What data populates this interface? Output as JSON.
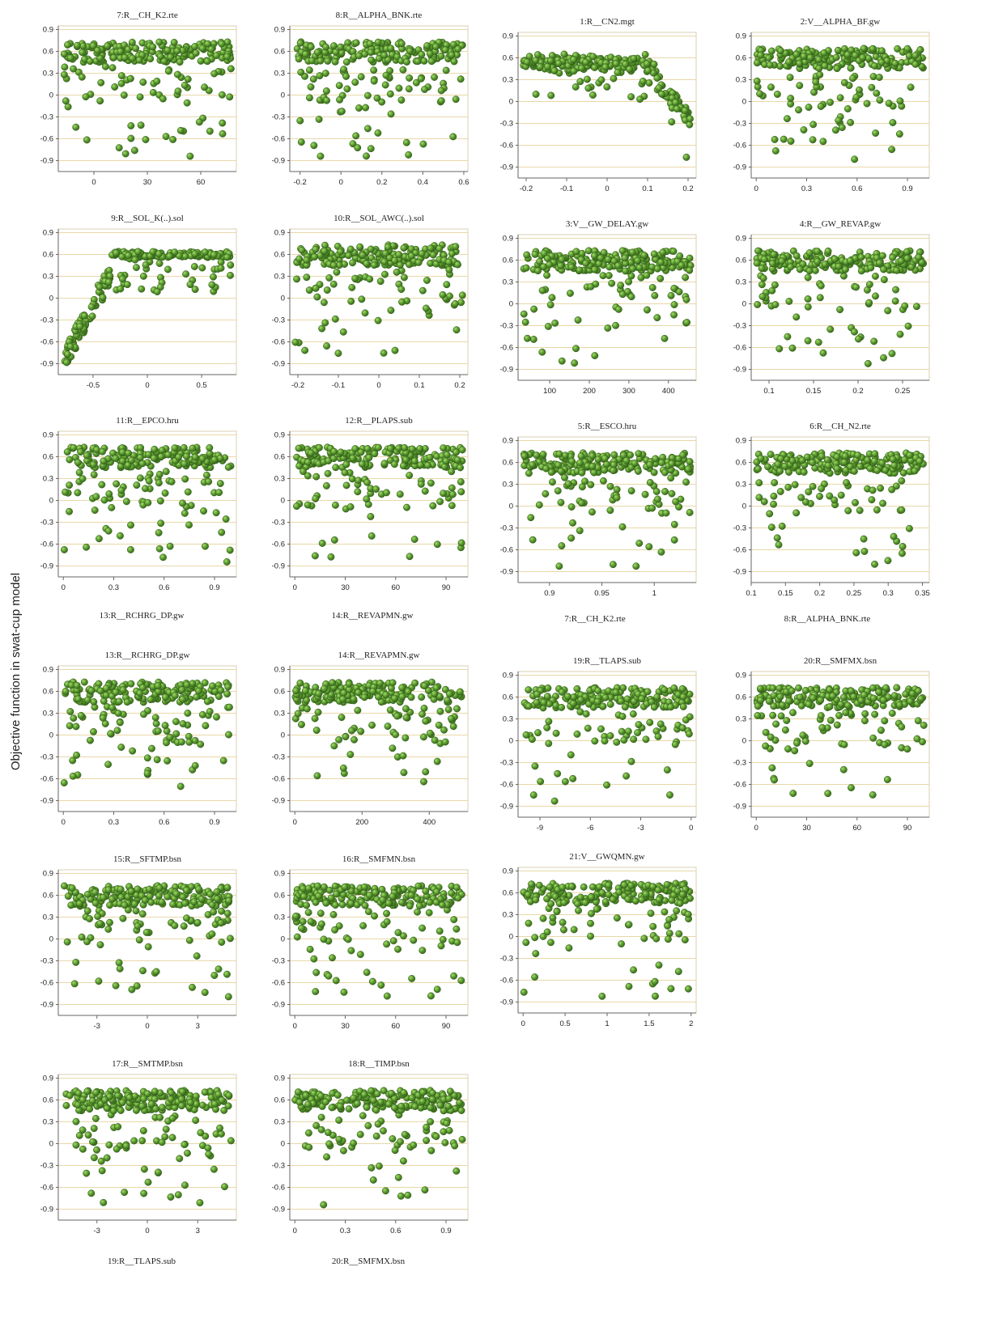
{
  "figure": {
    "ylabel": "Objective function in swat-cup model",
    "colors": {
      "point": "#4f8c2c",
      "point_light": "#8fcf55",
      "point_edge": "#2f5a17",
      "grid": "#e8d8a8",
      "axis": "#666666"
    },
    "y_ticks": [
      0.9,
      0.6,
      0.3,
      0,
      -0.3,
      -0.6,
      -0.9
    ],
    "y_tick_labels": [
      "0.9",
      "0.6",
      "0.3",
      "0",
      "-0.3",
      "-0.6",
      "-0.9"
    ],
    "y_range": [
      -1.05,
      0.95
    ]
  },
  "chart_data": [
    {
      "type": "scatter",
      "title": "7:R__CH_K2.rte",
      "xlim": [
        -20,
        80
      ],
      "x_ticks": [
        0,
        30,
        60
      ],
      "x_tick_labels": [
        "0",
        "30",
        "60"
      ],
      "pattern": "flat",
      "seed": 7
    },
    {
      "type": "scatter",
      "title": "8:R__ALPHA_BNK.rte",
      "xlim": [
        -0.25,
        0.62
      ],
      "x_ticks": [
        -0.2,
        0,
        0.2,
        0.4,
        0.6
      ],
      "x_tick_labels": [
        "-0.2",
        "0",
        "0.2",
        "0.4",
        "0.6"
      ],
      "pattern": "flat",
      "seed": 8
    },
    {
      "type": "scatter",
      "title": "1:R__CN2.mgt",
      "xlim": [
        -0.22,
        0.22
      ],
      "x_ticks": [
        -0.2,
        -0.1,
        0,
        0.1,
        0.2
      ],
      "x_tick_labels": [
        "-0.2",
        "-0.1",
        "0",
        "0.1",
        "0.2"
      ],
      "pattern": "cn2",
      "seed": 1
    },
    {
      "type": "scatter",
      "title": "2:V__ALPHA_BF.gw",
      "xlim": [
        -0.03,
        1.03
      ],
      "x_ticks": [
        0,
        0.3,
        0.6,
        0.9
      ],
      "x_tick_labels": [
        "0",
        "0.3",
        "0.6",
        "0.9"
      ],
      "pattern": "flat",
      "seed": 2
    },
    {
      "type": "scatter",
      "title": "9:R__SOL_K(..).sol",
      "xlim": [
        -0.82,
        0.82
      ],
      "x_ticks": [
        -0.5,
        0,
        0.5
      ],
      "x_tick_labels": [
        "-0.5",
        "0",
        "0.5"
      ],
      "pattern": "solk",
      "seed": 9
    },
    {
      "type": "scatter",
      "title": "10:R__SOL_AWC(..).sol",
      "xlim": [
        -0.22,
        0.22
      ],
      "x_ticks": [
        -0.2,
        -0.1,
        0,
        0.1,
        0.2
      ],
      "x_tick_labels": [
        "-0.2",
        "-0.1",
        "0",
        "0.1",
        "0.2"
      ],
      "pattern": "flat",
      "seed": 10
    },
    {
      "type": "scatter",
      "title": "3:V__GW_DELAY.gw",
      "xlim": [
        20,
        470
      ],
      "x_ticks": [
        100,
        200,
        300,
        400
      ],
      "x_tick_labels": [
        "100",
        "200",
        "300",
        "400"
      ],
      "pattern": "flat",
      "seed": 3
    },
    {
      "type": "scatter",
      "title": "4:R__GW_REVAP.gw",
      "xlim": [
        0.08,
        0.28
      ],
      "x_ticks": [
        0.1,
        0.15,
        0.2,
        0.25
      ],
      "x_tick_labels": [
        "0.1",
        "0.15",
        "0.2",
        "0.25"
      ],
      "pattern": "flat",
      "seed": 4
    },
    {
      "type": "scatter",
      "title": "11:R__EPCO.hru",
      "xlim": [
        -0.03,
        1.03
      ],
      "x_ticks": [
        0,
        0.3,
        0.6,
        0.9
      ],
      "x_tick_labels": [
        "0",
        "0.3",
        "0.6",
        "0.9"
      ],
      "pattern": "flat",
      "seed": 11
    },
    {
      "type": "scatter",
      "title": "12:R__PLAPS.sub",
      "xlim": [
        -3,
        103
      ],
      "x_ticks": [
        0,
        30,
        60,
        90
      ],
      "x_tick_labels": [
        "0",
        "30",
        "60",
        "90"
      ],
      "pattern": "flat",
      "seed": 12
    },
    {
      "type": "scatter",
      "title": "5:R__ESCO.hru",
      "xlim": [
        0.87,
        1.04
      ],
      "x_ticks": [
        0.9,
        0.95,
        1
      ],
      "x_tick_labels": [
        "0.9",
        "0.95",
        "1"
      ],
      "pattern": "flat",
      "seed": 5
    },
    {
      "type": "scatter",
      "title": "6:R__CH_N2.rte",
      "xlim": [
        0.1,
        0.36
      ],
      "x_ticks": [
        0.1,
        0.15,
        0.2,
        0.25,
        0.3,
        0.35
      ],
      "x_tick_labels": [
        "0.1",
        "0.15",
        "0.2",
        "0.25",
        "0.3",
        "0.35"
      ],
      "pattern": "flat",
      "seed": 6
    },
    {
      "type": "scatter",
      "title": "13:R__RCHRG_DP.gw",
      "xlim": [
        -0.03,
        1.03
      ],
      "x_ticks": [
        0,
        0.3,
        0.6,
        0.9
      ],
      "x_tick_labels": [
        "0",
        "0.3",
        "0.6",
        "0.9"
      ],
      "pattern": "flat",
      "seed": 13
    },
    {
      "type": "scatter",
      "title": "14:R__REVAPMN.gw",
      "xlim": [
        -15,
        515
      ],
      "x_ticks": [
        0,
        200,
        400
      ],
      "x_tick_labels": [
        "0",
        "200",
        "400"
      ],
      "pattern": "flat",
      "seed": 14
    },
    {
      "type": "scatter",
      "title": "19:R__TLAPS.sub",
      "xlim": [
        -10.3,
        0.3
      ],
      "x_ticks": [
        -9,
        -6,
        -3,
        0
      ],
      "x_tick_labels": [
        "-9",
        "-6",
        "-3",
        "0"
      ],
      "pattern": "flat",
      "seed": 19
    },
    {
      "type": "scatter",
      "title": "20:R__SMFMX.bsn",
      "xlim": [
        -3,
        103
      ],
      "x_ticks": [
        0,
        30,
        60,
        90
      ],
      "x_tick_labels": [
        "0",
        "30",
        "60",
        "90"
      ],
      "pattern": "flat",
      "seed": 20
    },
    {
      "type": "scatter",
      "title": "15:R__SFTMP.bsn",
      "xlim": [
        -5.3,
        5.3
      ],
      "x_ticks": [
        -3,
        0,
        3
      ],
      "x_tick_labels": [
        "-3",
        "0",
        "3"
      ],
      "pattern": "flat",
      "seed": 15
    },
    {
      "type": "scatter",
      "title": "16:R__SMFMN.bsn",
      "xlim": [
        -3,
        103
      ],
      "x_ticks": [
        0,
        30,
        60,
        90
      ],
      "x_tick_labels": [
        "0",
        "30",
        "60",
        "90"
      ],
      "pattern": "flat",
      "seed": 16
    },
    {
      "type": "scatter",
      "title": "21:V__GWQMN.gw",
      "xlim": [
        -0.06,
        2.06
      ],
      "x_ticks": [
        0,
        0.5,
        1,
        1.5,
        2
      ],
      "x_tick_labels": [
        "0",
        "0.5",
        "1",
        "1.5",
        "2"
      ],
      "pattern": "flat",
      "seed": 21
    },
    {
      "type": "scatter",
      "title": "17:R__SMTMP.bsn",
      "xlim": [
        -5.3,
        5.3
      ],
      "x_ticks": [
        -3,
        0,
        3
      ],
      "x_tick_labels": [
        "-3",
        "0",
        "3"
      ],
      "pattern": "flat",
      "seed": 17
    },
    {
      "type": "scatter",
      "title": "18:R__TIMP.bsn",
      "xlim": [
        -0.03,
        1.03
      ],
      "x_ticks": [
        0,
        0.3,
        0.6,
        0.9
      ],
      "x_tick_labels": [
        "0",
        "0.3",
        "0.6",
        "0.9"
      ],
      "pattern": "flat",
      "seed": 18
    }
  ],
  "captions": [
    "13:R__RCHRG_DP.gw",
    "14:R__REVAPMN.gw",
    "7:R__CH_K2.rte",
    "8:R__ALPHA_BNK.rte",
    "19:R__TLAPS.sub",
    "20:R__SMFMX.bsn"
  ]
}
